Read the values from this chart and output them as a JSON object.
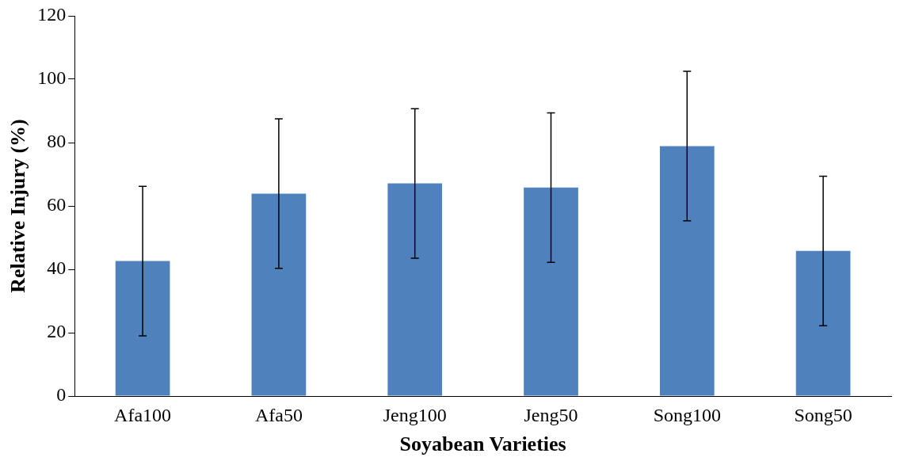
{
  "chart_data": {
    "type": "bar",
    "xlabel": "Soyabean Varieties",
    "ylabel": "Relative Injury (%)",
    "categories": [
      "Afa100",
      "Afa50",
      "Jeng100",
      "Jeng50",
      "Song100",
      "Song50"
    ],
    "values": [
      42.6,
      63.9,
      67.1,
      65.8,
      78.9,
      45.8
    ],
    "errors": [
      23.6,
      23.6,
      23.6,
      23.6,
      23.6,
      23.6
    ],
    "color": "#4f81bd",
    "ylim": [
      0,
      120
    ],
    "yticks": [
      0,
      20,
      40,
      60,
      80,
      100,
      120
    ],
    "grid": false,
    "legend": false
  }
}
